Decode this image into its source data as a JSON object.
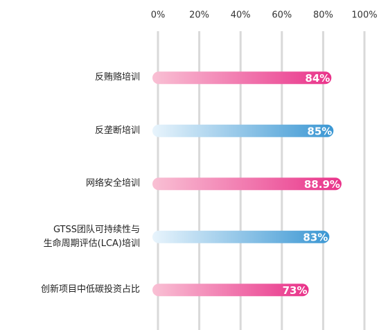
{
  "chart_data": {
    "type": "barh",
    "categories": [
      "反贿赂培训",
      "反垄断培训",
      "网络安全培训",
      "GTSS团队可持续性与\n生命周期评估(LCA)培训",
      "创新项目中低碳投资占比"
    ],
    "values": [
      84,
      85,
      88.9,
      83,
      73
    ],
    "value_labels": [
      "84%",
      "85%",
      "88.9%",
      "83%",
      "73%"
    ],
    "colors": [
      [
        "#f9c0d4",
        "#e9338a"
      ],
      [
        "#e8f4fc",
        "#3b97d3"
      ],
      [
        "#f9c0d4",
        "#e9338a"
      ],
      [
        "#e8f4fc",
        "#3b97d3"
      ],
      [
        "#f9c0d4",
        "#e9338a"
      ]
    ],
    "xlim": [
      0,
      100
    ],
    "xticks": [
      {
        "value": 0,
        "label": "0%"
      },
      {
        "value": 20,
        "label": "20%"
      },
      {
        "value": 40,
        "label": "40%"
      },
      {
        "value": 60,
        "label": "60%"
      },
      {
        "value": 80,
        "label": "80%"
      },
      {
        "value": 100,
        "label": "100%"
      }
    ],
    "grid": true
  }
}
